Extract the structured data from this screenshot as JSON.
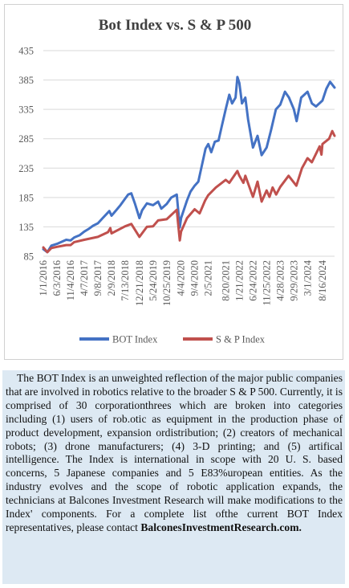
{
  "chart_data": {
    "type": "line",
    "title": "Bot Index vs. S & P 500",
    "ylim": [
      85,
      435
    ],
    "yticks": [
      85,
      135,
      185,
      235,
      285,
      335,
      385,
      435
    ],
    "xticks": [
      "1/1/2016",
      "6/3/2016",
      "11/4/2016",
      "4/7/2017",
      "9/8/2017",
      "2/9/2018",
      "7/13/2018",
      "12/21/2018",
      "5/24/2019",
      "10/25/2019",
      "4/4/2020",
      "9/4/2020",
      "2/5/2021",
      "8/20/2021",
      "1/21/2022",
      "6/24/2022",
      "11/25/2022",
      "4/28/2023",
      "9/29/2023",
      "3/1/2024",
      "8/16/2024"
    ],
    "grid": true,
    "legend_position": "bottom",
    "series": [
      {
        "name": "BOT Index",
        "color": "#4472c4",
        "values": [
          {
            "x": "1/1/2016",
            "y": 97
          },
          {
            "x": "2/15/2016",
            "y": 92
          },
          {
            "x": "4/1/2016",
            "y": 103
          },
          {
            "x": "6/3/2016",
            "y": 106
          },
          {
            "x": "8/1/2016",
            "y": 110
          },
          {
            "x": "9/15/2016",
            "y": 113
          },
          {
            "x": "11/4/2016",
            "y": 112
          },
          {
            "x": "12/15/2016",
            "y": 117
          },
          {
            "x": "2/15/2017",
            "y": 121
          },
          {
            "x": "4/7/2017",
            "y": 127
          },
          {
            "x": "6/1/2017",
            "y": 132
          },
          {
            "x": "7/15/2017",
            "y": 137
          },
          {
            "x": "9/8/2017",
            "y": 141
          },
          {
            "x": "11/1/2017",
            "y": 150
          },
          {
            "x": "1/15/2018",
            "y": 162
          },
          {
            "x": "2/9/2018",
            "y": 154
          },
          {
            "x": "4/1/2018",
            "y": 163
          },
          {
            "x": "5/20/2018",
            "y": 172
          },
          {
            "x": "7/13/2018",
            "y": 183
          },
          {
            "x": "8/15/2018",
            "y": 190
          },
          {
            "x": "9/20/2018",
            "y": 192
          },
          {
            "x": "10/30/2018",
            "y": 175
          },
          {
            "x": "12/21/2018",
            "y": 150
          },
          {
            "x": "1/20/2019",
            "y": 163
          },
          {
            "x": "3/15/2019",
            "y": 175
          },
          {
            "x": "5/24/2019",
            "y": 172
          },
          {
            "x": "7/20/2019",
            "y": 178
          },
          {
            "x": "8/25/2019",
            "y": 166
          },
          {
            "x": "10/25/2019",
            "y": 174
          },
          {
            "x": "12/15/2019",
            "y": 185
          },
          {
            "x": "2/15/2020",
            "y": 190
          },
          {
            "x": "3/20/2020",
            "y": 134
          },
          {
            "x": "4/4/2020",
            "y": 150
          },
          {
            "x": "6/10/2020",
            "y": 180
          },
          {
            "x": "7/20/2020",
            "y": 195
          },
          {
            "x": "9/4/2020",
            "y": 205
          },
          {
            "x": "10/15/2020",
            "y": 212
          },
          {
            "x": "11/25/2020",
            "y": 240
          },
          {
            "x": "1/5/2021",
            "y": 268
          },
          {
            "x": "2/5/2021",
            "y": 276
          },
          {
            "x": "3/10/2021",
            "y": 262
          },
          {
            "x": "4/20/2021",
            "y": 280
          },
          {
            "x": "6/1/2021",
            "y": 282
          },
          {
            "x": "7/5/2021",
            "y": 305
          },
          {
            "x": "8/20/2021",
            "y": 335
          },
          {
            "x": "9/30/2021",
            "y": 360
          },
          {
            "x": "11/1/2021",
            "y": 345
          },
          {
            "x": "12/10/2021",
            "y": 355
          },
          {
            "x": "12/30/2021",
            "y": 390
          },
          {
            "x": "1/21/2022",
            "y": 380
          },
          {
            "x": "2/20/2022",
            "y": 345
          },
          {
            "x": "3/30/2022",
            "y": 355
          },
          {
            "x": "4/30/2022",
            "y": 318
          },
          {
            "x": "6/24/2022",
            "y": 270
          },
          {
            "x": "8/15/2022",
            "y": 290
          },
          {
            "x": "9/30/2022",
            "y": 257
          },
          {
            "x": "11/25/2022",
            "y": 270
          },
          {
            "x": "1/15/2023",
            "y": 300
          },
          {
            "x": "3/10/2023",
            "y": 335
          },
          {
            "x": "4/28/2023",
            "y": 343
          },
          {
            "x": "6/20/2023",
            "y": 365
          },
          {
            "x": "8/5/2023",
            "y": 355
          },
          {
            "x": "9/29/2023",
            "y": 335
          },
          {
            "x": "10/30/2023",
            "y": 315
          },
          {
            "x": "12/20/2023",
            "y": 355
          },
          {
            "x": "3/1/2024",
            "y": 365
          },
          {
            "x": "4/20/2024",
            "y": 345
          },
          {
            "x": "6/5/2024",
            "y": 340
          },
          {
            "x": "8/16/2024",
            "y": 350
          },
          {
            "x": "9/30/2024",
            "y": 370
          },
          {
            "x": "11/10/2024",
            "y": 382
          },
          {
            "x": "12/31/2024",
            "y": 372
          }
        ]
      },
      {
        "name": "S & P Index",
        "color": "#c0504d",
        "values": [
          {
            "x": "1/1/2016",
            "y": 100
          },
          {
            "x": "2/15/2016",
            "y": 92
          },
          {
            "x": "4/1/2016",
            "y": 99
          },
          {
            "x": "6/3/2016",
            "y": 101
          },
          {
            "x": "9/15/2016",
            "y": 104
          },
          {
            "x": "11/4/2016",
            "y": 104
          },
          {
            "x": "12/15/2016",
            "y": 109
          },
          {
            "x": "4/7/2017",
            "y": 113
          },
          {
            "x": "9/8/2017",
            "y": 118
          },
          {
            "x": "12/31/2017",
            "y": 126
          },
          {
            "x": "1/26/2018",
            "y": 133
          },
          {
            "x": "2/9/2018",
            "y": 124
          },
          {
            "x": "7/13/2018",
            "y": 136
          },
          {
            "x": "9/20/2018",
            "y": 140
          },
          {
            "x": "12/21/2018",
            "y": 118
          },
          {
            "x": "3/15/2019",
            "y": 135
          },
          {
            "x": "5/24/2019",
            "y": 136
          },
          {
            "x": "7/20/2019",
            "y": 146
          },
          {
            "x": "10/25/2019",
            "y": 148
          },
          {
            "x": "2/15/2020",
            "y": 164
          },
          {
            "x": "3/20/2020",
            "y": 112
          },
          {
            "x": "4/4/2020",
            "y": 127
          },
          {
            "x": "6/10/2020",
            "y": 150
          },
          {
            "x": "9/4/2020",
            "y": 165
          },
          {
            "x": "10/30/2020",
            "y": 158
          },
          {
            "x": "12/31/2020",
            "y": 180
          },
          {
            "x": "2/5/2021",
            "y": 189
          },
          {
            "x": "5/1/2021",
            "y": 202
          },
          {
            "x": "8/20/2021",
            "y": 215
          },
          {
            "x": "9/30/2021",
            "y": 210
          },
          {
            "x": "12/30/2021",
            "y": 230
          },
          {
            "x": "1/21/2022",
            "y": 222
          },
          {
            "x": "3/8/2022",
            "y": 210
          },
          {
            "x": "3/30/2022",
            "y": 222
          },
          {
            "x": "6/24/2022",
            "y": 186
          },
          {
            "x": "8/15/2022",
            "y": 212
          },
          {
            "x": "9/30/2022",
            "y": 178
          },
          {
            "x": "11/25/2022",
            "y": 197
          },
          {
            "x": "12/28/2022",
            "y": 186
          },
          {
            "x": "2/1/2023",
            "y": 202
          },
          {
            "x": "3/13/2023",
            "y": 190
          },
          {
            "x": "4/28/2023",
            "y": 203
          },
          {
            "x": "7/31/2023",
            "y": 222
          },
          {
            "x": "10/27/2023",
            "y": 205
          },
          {
            "x": "12/29/2023",
            "y": 235
          },
          {
            "x": "3/1/2024",
            "y": 252
          },
          {
            "x": "4/19/2024",
            "y": 245
          },
          {
            "x": "7/16/2024",
            "y": 272
          },
          {
            "x": "8/5/2024",
            "y": 258
          },
          {
            "x": "8/16/2024",
            "y": 276
          },
          {
            "x": "10/30/2024",
            "y": 285
          },
          {
            "x": "12/5/2024",
            "y": 298
          },
          {
            "x": "12/31/2024",
            "y": 290
          }
        ]
      }
    ]
  },
  "description": {
    "paragraph": "The BOT Index is an unweighted reflection of the major public companies that are involved in robotics relative to the broader S & P 500. Currently, it is comprised of 30 corporationthrees which are broken into categories including (1) users of rob.otic as equipment in the production phase of product development, expansion ordistribution; (2) creators of mechanical robots; (3) drone manufacturers; (4) 3-D printing; and (5) artifical intelligence. The Index is international in scope with 20 U. S. based concerns, 5 Japanese companies and 5 E83%uropean entities. As the industry evolves and the scope of robotic application expands, the technicians at Balcones Investment Research will make modifications to the Index' components. For a  complete list ofthe current BOT Index representatives, please contact",
    "link": "BalconesInvestmentResearch.com."
  }
}
